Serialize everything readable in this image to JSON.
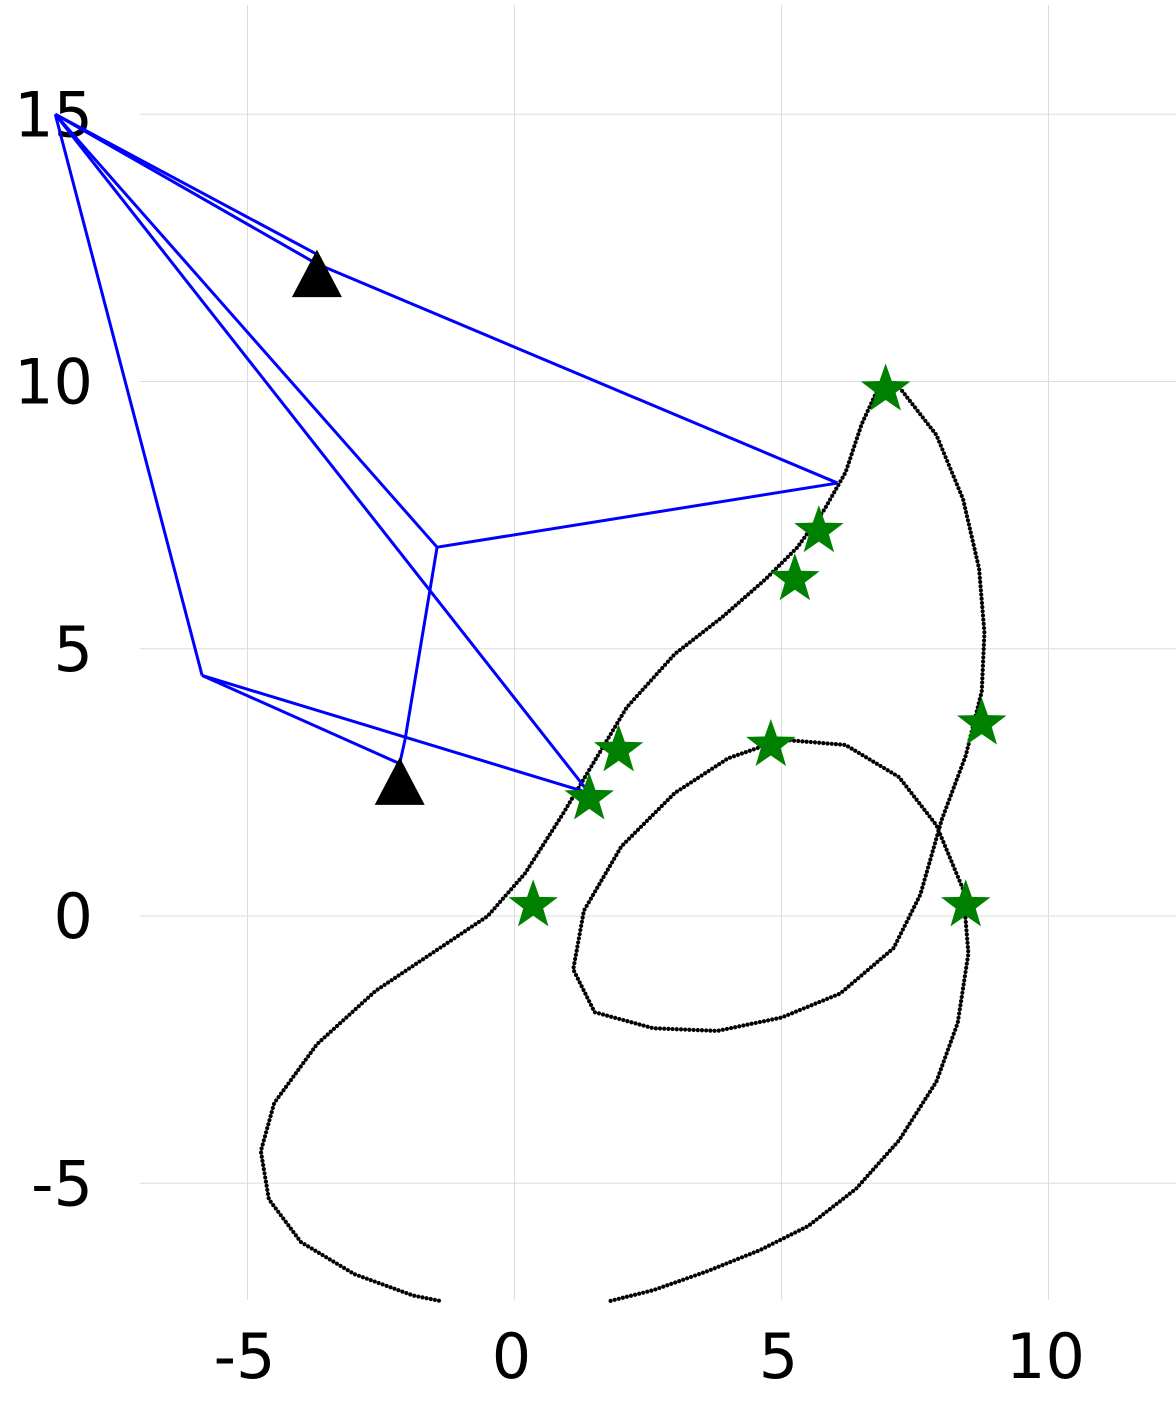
{
  "chart_data": {
    "type": "scatter",
    "title": "",
    "xlabel": "",
    "ylabel": "",
    "xlim": [
      -8.5,
      12.3
    ],
    "ylim": [
      -7.2,
      16.8
    ],
    "grid": true,
    "x_ticks": [
      "-5",
      "0",
      "5",
      "10"
    ],
    "y_ticks": [
      "-5",
      "0",
      "5",
      "10",
      "15"
    ],
    "x_tick_values": [
      -5,
      0,
      5,
      10
    ],
    "y_tick_values": [
      -5,
      0,
      5,
      10,
      15
    ],
    "colors": {
      "trajectory": "#000000",
      "network": "#0000ff",
      "stars": "#008000",
      "triangles": "#000000",
      "grid": "#dddddd"
    },
    "trajectory_path": [
      [
        1.8,
        -7.2
      ],
      [
        2.6,
        -7.0
      ],
      [
        3.6,
        -6.65
      ],
      [
        4.6,
        -6.25
      ],
      [
        5.5,
        -5.8
      ],
      [
        6.4,
        -5.1
      ],
      [
        7.2,
        -4.2
      ],
      [
        7.9,
        -3.1
      ],
      [
        8.3,
        -2.0
      ],
      [
        8.5,
        -0.7
      ],
      [
        8.4,
        0.5
      ],
      [
        7.9,
        1.7
      ],
      [
        7.2,
        2.6
      ],
      [
        6.2,
        3.2
      ],
      [
        5.0,
        3.3
      ],
      [
        4.0,
        2.95
      ],
      [
        3.0,
        2.3
      ],
      [
        2.0,
        1.3
      ],
      [
        1.3,
        0.1
      ],
      [
        1.1,
        -1.0
      ],
      [
        1.5,
        -1.8
      ],
      [
        2.6,
        -2.1
      ],
      [
        3.8,
        -2.15
      ],
      [
        5.0,
        -1.9
      ],
      [
        6.1,
        -1.45
      ],
      [
        7.1,
        -0.6
      ],
      [
        7.6,
        0.4
      ],
      [
        8.0,
        1.8
      ],
      [
        8.45,
        3.0
      ],
      [
        8.75,
        4.2
      ],
      [
        8.8,
        5.3
      ],
      [
        8.7,
        6.5
      ],
      [
        8.4,
        7.8
      ],
      [
        7.9,
        9.0
      ],
      [
        7.2,
        9.9
      ],
      [
        6.8,
        9.85
      ],
      [
        6.5,
        9.2
      ],
      [
        6.2,
        8.3
      ],
      [
        5.8,
        7.6
      ],
      [
        5.3,
        6.9
      ],
      [
        4.7,
        6.3
      ],
      [
        3.9,
        5.6
      ],
      [
        3.0,
        4.9
      ],
      [
        2.1,
        3.9
      ],
      [
        1.5,
        2.9
      ],
      [
        0.9,
        1.9
      ],
      [
        0.2,
        0.8
      ],
      [
        -0.5,
        0.0
      ],
      [
        -1.4,
        -0.6
      ],
      [
        -2.6,
        -1.4
      ],
      [
        -3.7,
        -2.4
      ],
      [
        -4.5,
        -3.5
      ],
      [
        -4.75,
        -4.4
      ],
      [
        -4.6,
        -5.3
      ],
      [
        -4.0,
        -6.1
      ],
      [
        -3.0,
        -6.7
      ],
      [
        -1.9,
        -7.1
      ],
      [
        -1.4,
        -7.2
      ]
    ],
    "stars": [
      [
        0.35,
        0.2
      ],
      [
        1.4,
        2.2
      ],
      [
        1.95,
        3.1
      ],
      [
        5.25,
        6.3
      ],
      [
        5.7,
        7.2
      ],
      [
        6.95,
        9.85
      ],
      [
        4.8,
        3.2
      ],
      [
        8.75,
        3.6
      ],
      [
        8.45,
        0.2
      ]
    ],
    "triangles": [
      [
        -3.7,
        12.0
      ],
      [
        -2.15,
        2.5
      ]
    ],
    "network_nodes": {
      "A": [
        -8.6,
        15.0
      ],
      "B": [
        -3.7,
        12.2
      ],
      "C": [
        6.05,
        8.1
      ],
      "D": [
        -1.45,
        6.9
      ],
      "E": [
        -5.85,
        4.5
      ],
      "F": [
        -2.15,
        2.85
      ],
      "G": [
        -2.05,
        3.3
      ],
      "H": [
        1.4,
        2.3
      ]
    },
    "network_edges": [
      [
        "A",
        "B"
      ],
      [
        "A",
        "B"
      ],
      [
        "B",
        "C"
      ],
      [
        "A",
        "D"
      ],
      [
        "A",
        "H"
      ],
      [
        "A",
        "E"
      ],
      [
        "D",
        "C"
      ],
      [
        "D",
        "G"
      ],
      [
        "G",
        "F"
      ],
      [
        "E",
        "F"
      ],
      [
        "E",
        "H"
      ]
    ]
  }
}
